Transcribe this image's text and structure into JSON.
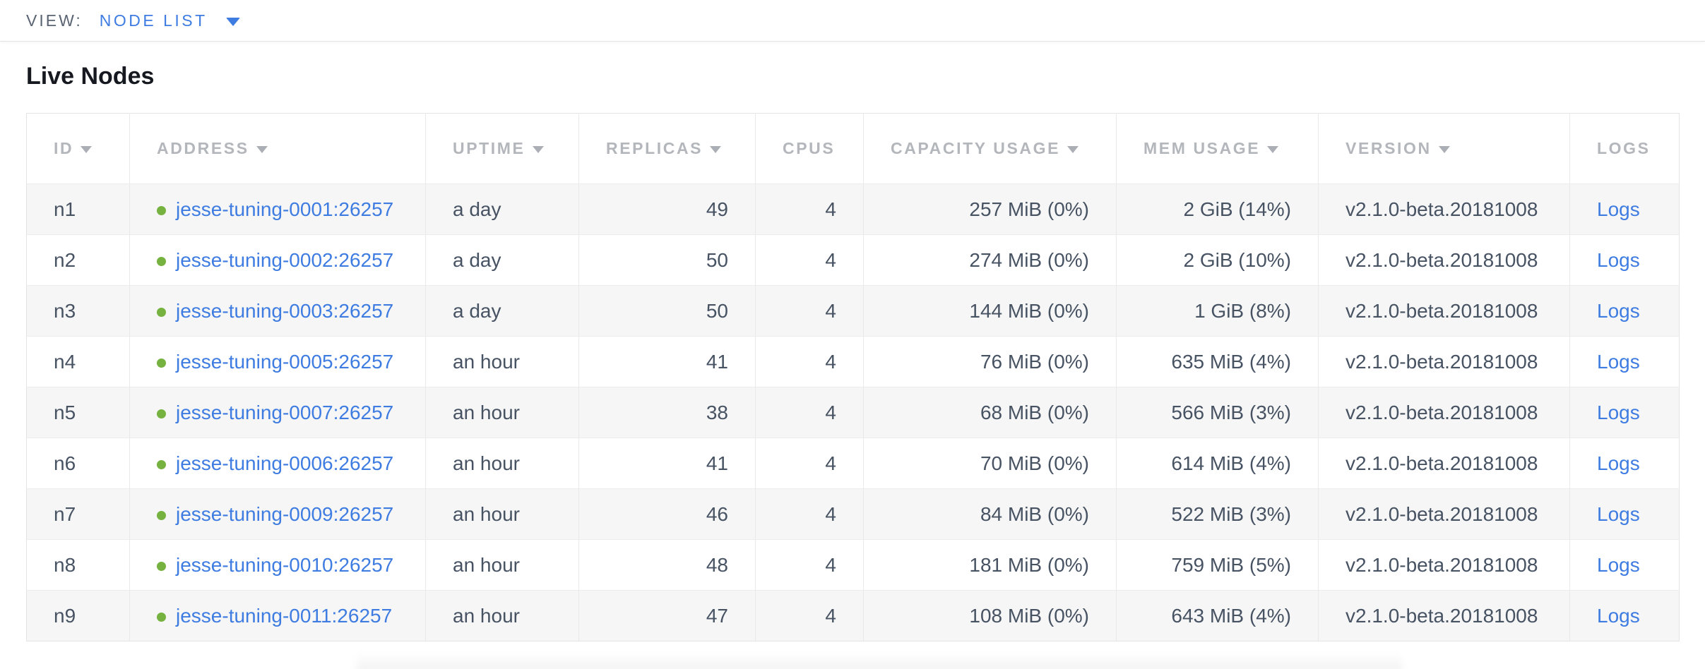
{
  "colors": {
    "accent_blue": "#3e7ce2",
    "status_green": "#76b23f",
    "header_gray": "#b3b6bb",
    "cell_text": "#475363",
    "row_stripe": "#f6f6f6",
    "border": "#e4e4e4"
  },
  "topbar": {
    "view_label": "VIEW:",
    "view_value": "NODE LIST",
    "caret_icon": "caret-down"
  },
  "page": {
    "title": "Live Nodes"
  },
  "table": {
    "columns": [
      {
        "key": "id",
        "label": "ID",
        "sortable": true
      },
      {
        "key": "address",
        "label": "ADDRESS",
        "sortable": true
      },
      {
        "key": "uptime",
        "label": "UPTIME",
        "sortable": true
      },
      {
        "key": "replicas",
        "label": "REPLICAS",
        "sortable": true
      },
      {
        "key": "cpus",
        "label": "CPUS",
        "sortable": false
      },
      {
        "key": "capacity_usage",
        "label": "CAPACITY USAGE",
        "sortable": true
      },
      {
        "key": "mem_usage",
        "label": "MEM USAGE",
        "sortable": true
      },
      {
        "key": "version",
        "label": "VERSION",
        "sortable": true
      },
      {
        "key": "logs",
        "label": "LOGS",
        "sortable": false
      }
    ],
    "rows": [
      {
        "id": "n1",
        "address": "jesse-tuning-0001:26257",
        "uptime": "a day",
        "replicas": "49",
        "cpus": "4",
        "capacity_usage": "257 MiB (0%)",
        "mem_usage": "2 GiB (14%)",
        "version": "v2.1.0-beta.20181008",
        "logs": "Logs"
      },
      {
        "id": "n2",
        "address": "jesse-tuning-0002:26257",
        "uptime": "a day",
        "replicas": "50",
        "cpus": "4",
        "capacity_usage": "274 MiB (0%)",
        "mem_usage": "2 GiB (10%)",
        "version": "v2.1.0-beta.20181008",
        "logs": "Logs"
      },
      {
        "id": "n3",
        "address": "jesse-tuning-0003:26257",
        "uptime": "a day",
        "replicas": "50",
        "cpus": "4",
        "capacity_usage": "144 MiB (0%)",
        "mem_usage": "1 GiB (8%)",
        "version": "v2.1.0-beta.20181008",
        "logs": "Logs"
      },
      {
        "id": "n4",
        "address": "jesse-tuning-0005:26257",
        "uptime": "an hour",
        "replicas": "41",
        "cpus": "4",
        "capacity_usage": "76 MiB (0%)",
        "mem_usage": "635 MiB (4%)",
        "version": "v2.1.0-beta.20181008",
        "logs": "Logs"
      },
      {
        "id": "n5",
        "address": "jesse-tuning-0007:26257",
        "uptime": "an hour",
        "replicas": "38",
        "cpus": "4",
        "capacity_usage": "68 MiB (0%)",
        "mem_usage": "566 MiB (3%)",
        "version": "v2.1.0-beta.20181008",
        "logs": "Logs"
      },
      {
        "id": "n6",
        "address": "jesse-tuning-0006:26257",
        "uptime": "an hour",
        "replicas": "41",
        "cpus": "4",
        "capacity_usage": "70 MiB (0%)",
        "mem_usage": "614 MiB (4%)",
        "version": "v2.1.0-beta.20181008",
        "logs": "Logs"
      },
      {
        "id": "n7",
        "address": "jesse-tuning-0009:26257",
        "uptime": "an hour",
        "replicas": "46",
        "cpus": "4",
        "capacity_usage": "84 MiB (0%)",
        "mem_usage": "522 MiB (3%)",
        "version": "v2.1.0-beta.20181008",
        "logs": "Logs"
      },
      {
        "id": "n8",
        "address": "jesse-tuning-0010:26257",
        "uptime": "an hour",
        "replicas": "48",
        "cpus": "4",
        "capacity_usage": "181 MiB (0%)",
        "mem_usage": "759 MiB (5%)",
        "version": "v2.1.0-beta.20181008",
        "logs": "Logs"
      },
      {
        "id": "n9",
        "address": "jesse-tuning-0011:26257",
        "uptime": "an hour",
        "replicas": "47",
        "cpus": "4",
        "capacity_usage": "108 MiB (0%)",
        "mem_usage": "643 MiB (4%)",
        "version": "v2.1.0-beta.20181008",
        "logs": "Logs"
      }
    ]
  }
}
